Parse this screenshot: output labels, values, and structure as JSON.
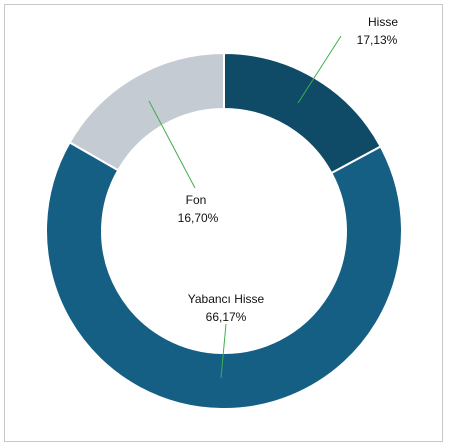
{
  "chart_data": {
    "type": "pie",
    "variant": "donut",
    "title": "",
    "slices": [
      {
        "label": "Hisse",
        "value": 17.13,
        "value_label": "17,13%",
        "color": "#0f4a66"
      },
      {
        "label": "Yabancı Hisse",
        "value": 66.17,
        "value_label": "66,17%",
        "color": "#155f84"
      },
      {
        "label": "Fon",
        "value": 16.7,
        "value_label": "16,70%",
        "color": "#c5cbd2"
      }
    ],
    "start_angle": "12 o'clock",
    "direction": "clockwise",
    "legend": "none",
    "leader_line_color": "#3fae49"
  }
}
